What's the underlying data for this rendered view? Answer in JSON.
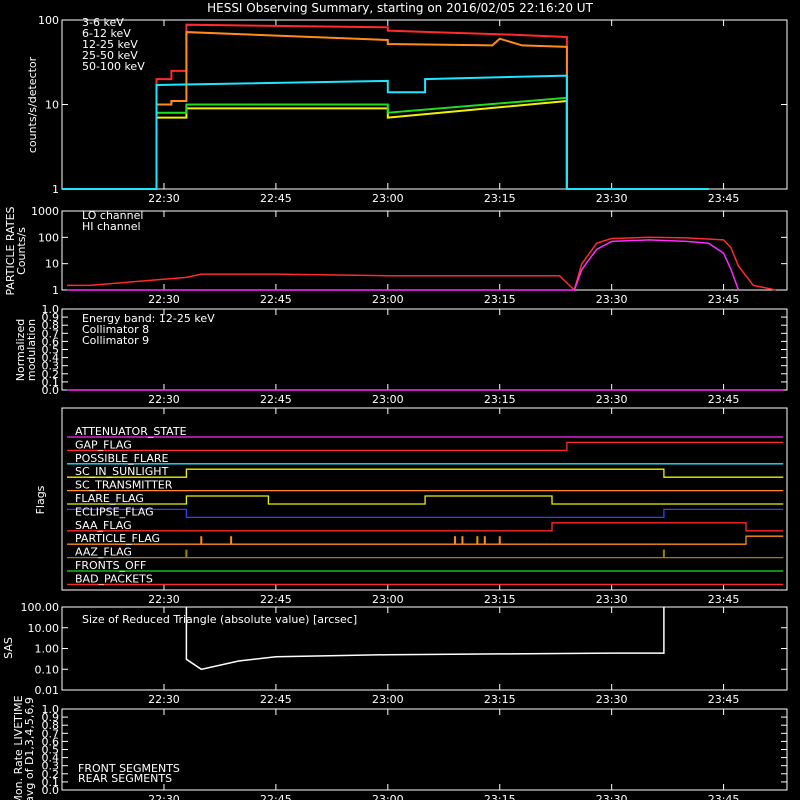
{
  "title": "HESSI Observing Summary, starting on 2016/02/05 22:16:20 UT",
  "time_ticks": [
    "22:30",
    "22:45",
    "23:00",
    "23:15",
    "23:30",
    "23:45"
  ],
  "colors": {
    "red": "#ff2a2a",
    "orange": "#ff8c1a",
    "yellow": "#f0f000",
    "green": "#1ee01e",
    "cyan": "#1ee6ff",
    "magenta": "#ff2aff",
    "purple": "#c040ff",
    "blue": "#3040ff",
    "white": "#ffffff"
  },
  "chart_data": [
    {
      "type": "line",
      "panel": "counts",
      "ylabel": "counts/s/detector",
      "yscale": "log",
      "ylim": [
        1,
        100
      ],
      "yticks": [
        "1",
        "10",
        "100"
      ],
      "x_unit": "UT",
      "series": [
        {
          "name": "3-6 keV",
          "color": "#ff2a2a",
          "x": [
            "22:16:20",
            "22:29",
            "22:29",
            "22:31",
            "22:31",
            "22:33",
            "22:33",
            "23:00",
            "23:00",
            "23:10",
            "23:15",
            "23:20",
            "23:24",
            "23:24",
            "23:43"
          ],
          "values": [
            1,
            1,
            20,
            20,
            25,
            25,
            88,
            82,
            75,
            70,
            68,
            65,
            63,
            1,
            1
          ]
        },
        {
          "name": "6-12 keV",
          "color": "#ff8c1a",
          "x": [
            "22:16:20",
            "22:29",
            "22:29",
            "22:31",
            "22:31",
            "22:33",
            "22:33",
            "23:00",
            "23:00",
            "23:14",
            "23:15",
            "23:18",
            "23:24",
            "23:24",
            "23:43"
          ],
          "values": [
            1,
            1,
            10,
            10,
            11,
            11,
            72,
            58,
            52,
            50,
            60,
            50,
            48,
            1,
            1
          ]
        },
        {
          "name": "12-25 keV",
          "color": "#f0f000",
          "x": [
            "22:16:20",
            "22:29",
            "22:29",
            "22:33",
            "22:33",
            "23:00",
            "23:00",
            "23:24",
            "23:24",
            "23:43"
          ],
          "values": [
            1,
            1,
            7,
            7,
            9,
            9,
            7,
            11,
            1,
            1
          ]
        },
        {
          "name": "25-50 keV",
          "color": "#1ee01e",
          "x": [
            "22:16:20",
            "22:29",
            "22:29",
            "22:33",
            "22:33",
            "23:00",
            "23:00",
            "23:24",
            "23:24",
            "23:43"
          ],
          "values": [
            1,
            1,
            8,
            8,
            10,
            10,
            8,
            12,
            1,
            1
          ]
        },
        {
          "name": "50-100 keV",
          "color": "#1ee6ff",
          "x": [
            "22:16:20",
            "22:29",
            "22:29",
            "23:00",
            "23:00",
            "23:05",
            "23:05",
            "23:24",
            "23:24",
            "23:43"
          ],
          "values": [
            1,
            1,
            17,
            19,
            14,
            14,
            20,
            22,
            1,
            1
          ]
        }
      ]
    },
    {
      "type": "line",
      "panel": "particle",
      "ylabel": "PARTICLE RATES",
      "ylabel2": "Counts/s",
      "yscale": "log",
      "ylim": [
        1,
        1000
      ],
      "yticks": [
        "1",
        "10",
        "100",
        "1000"
      ],
      "series": [
        {
          "name": "LO channel",
          "color": "#ff2a2a",
          "x": [
            "22:17",
            "22:20",
            "22:33",
            "22:35",
            "22:45",
            "23:00",
            "23:15",
            "23:23",
            "23:25",
            "23:26",
            "23:28",
            "23:30",
            "23:35",
            "23:40",
            "23:45",
            "23:46",
            "23:47",
            "23:49",
            "23:49",
            "23:52"
          ],
          "values": [
            1.5,
            1.5,
            3,
            4,
            4,
            3.5,
            3.5,
            3.5,
            1,
            10,
            60,
            90,
            100,
            95,
            80,
            40,
            8,
            1.5,
            1.5,
            1
          ]
        },
        {
          "name": "HI channel",
          "color": "#ff2aff",
          "x": [
            "22:17",
            "23:25",
            "23:26",
            "23:28",
            "23:30",
            "23:35",
            "23:40",
            "23:43",
            "23:45",
            "23:46",
            "23:47"
          ],
          "values": [
            1,
            1,
            6,
            35,
            70,
            80,
            70,
            60,
            25,
            6,
            1
          ]
        }
      ]
    },
    {
      "type": "line",
      "panel": "modulation",
      "ylabel": "Normalized",
      "ylabel2": "modulation",
      "ylim": [
        0,
        1
      ],
      "yticks": [
        "0.0",
        "0.1",
        "0.2",
        "0.3",
        "0.4",
        "0.5",
        "0.6",
        "0.7",
        "0.8",
        "0.9",
        "1.0"
      ],
      "legend": [
        {
          "name": "Energy band: 12-25 keV",
          "color": "#ffffff"
        },
        {
          "name": "Collimator 8",
          "color": "#1ee6ff"
        },
        {
          "name": "Collimator 9",
          "color": "#ff2aff"
        }
      ],
      "series": [
        {
          "name": "Collimator 9",
          "color": "#ff2aff",
          "x": [
            "22:17",
            "23:53"
          ],
          "values": [
            0,
            0
          ]
        }
      ]
    },
    {
      "type": "flags",
      "panel": "flags",
      "ylabel": "Flags",
      "flags": [
        {
          "name": "ATTENUATOR_STATE",
          "color": "#ff2aff",
          "segments": [
            [
              "22:17",
              "23:53",
              0
            ]
          ]
        },
        {
          "name": "GAP_FLAG",
          "color": "#ff2a2a",
          "segments": [
            [
              "22:17",
              "23:24",
              0
            ],
            [
              "23:24",
              "23:53",
              1
            ]
          ]
        },
        {
          "name": "POSSIBLE_FLARE",
          "color": "#1ee6ff",
          "segments": [
            [
              "22:17",
              "23:53",
              0
            ]
          ]
        },
        {
          "name": "SC_IN_SUNLIGHT",
          "color": "#f0f000",
          "segments": [
            [
              "22:17",
              "22:33",
              0
            ],
            [
              "22:33",
              "23:37",
              1
            ],
            [
              "23:37",
              "23:53",
              0
            ]
          ]
        },
        {
          "name": "SC_TRANSMITTER",
          "color": "#ff8c1a",
          "segments": [
            [
              "22:17",
              "23:53",
              0
            ]
          ]
        },
        {
          "name": "FLARE_FLAG",
          "color": "#f0f000",
          "segments": [
            [
              "22:17",
              "22:33",
              0
            ],
            [
              "22:33",
              "22:44",
              1
            ],
            [
              "22:44",
              "23:05",
              0
            ],
            [
              "23:05",
              "23:22",
              1
            ],
            [
              "23:22",
              "23:53",
              0
            ]
          ]
        },
        {
          "name": "ECLIPSE_FLAG",
          "color": "#3040ff",
          "segments": [
            [
              "22:17",
              "22:33",
              1
            ],
            [
              "22:33",
              "23:37",
              0
            ],
            [
              "23:37",
              "23:53",
              1
            ]
          ]
        },
        {
          "name": "SAA_FLAG",
          "color": "#ff2a2a",
          "segments": [
            [
              "22:17",
              "23:22",
              0
            ],
            [
              "23:22",
              "23:48",
              1
            ],
            [
              "23:48",
              "23:53",
              0
            ]
          ]
        },
        {
          "name": "PARTICLE_FLAG",
          "color": "#ff8c1a",
          "segments": [
            [
              "22:17",
              "23:48",
              0
            ],
            [
              "23:48",
              "23:53",
              1
            ]
          ],
          "spikes": [
            "22:35",
            "22:39",
            "23:09",
            "23:10",
            "23:12",
            "23:13",
            "23:15"
          ]
        },
        {
          "name": "AAZ_FLAG",
          "color": "#a08000",
          "segments": [
            [
              "22:17",
              "23:53",
              0
            ]
          ],
          "spikes": [
            "22:33",
            "23:37"
          ]
        },
        {
          "name": "FRONTS_OFF",
          "color": "#1ee01e",
          "segments": [
            [
              "22:17",
              "23:53",
              0
            ]
          ]
        },
        {
          "name": "BAD_PACKETS",
          "color": "#ff2a2a",
          "segments": [
            [
              "22:17",
              "23:53",
              0
            ]
          ]
        }
      ]
    },
    {
      "type": "line",
      "panel": "sas",
      "ylabel": "SAS",
      "title": "Size of Reduced Triangle (absolute value) [arcsec]",
      "yscale": "log",
      "ylim": [
        0.01,
        100
      ],
      "yticks": [
        "0.01",
        "0.10",
        "1.00",
        "10.00",
        "100.00"
      ],
      "series": [
        {
          "name": "",
          "color": "#ffffff",
          "x": [
            "22:33",
            "22:33",
            "22:35",
            "22:40",
            "22:45",
            "23:00",
            "23:15",
            "23:30",
            "23:37",
            "23:37"
          ],
          "values": [
            100,
            0.3,
            0.1,
            0.25,
            0.4,
            0.5,
            0.55,
            0.6,
            0.6,
            100
          ]
        }
      ]
    },
    {
      "type": "line",
      "panel": "livetime",
      "ylabel": "Mon. Rate LIVETIME",
      "ylabel2": "avg of D1,3,4,5,6,9",
      "ylim": [
        0,
        1
      ],
      "yticks": [
        "0.0",
        "0.1",
        "0.2",
        "0.3",
        "0.4",
        "0.5",
        "0.6",
        "0.7",
        "0.8",
        "0.9",
        "1.0"
      ],
      "legend": [
        {
          "name": "FRONT SEGMENTS",
          "color": "#1ee01e"
        },
        {
          "name": "REAR SEGMENTS",
          "color": "#0a8a0a"
        }
      ],
      "series": []
    }
  ]
}
